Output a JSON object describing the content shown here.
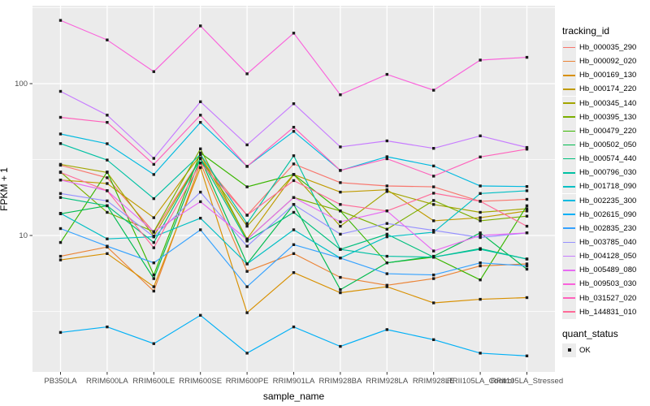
{
  "chart_data": {
    "type": "line",
    "title": "",
    "xlabel": "sample_name",
    "ylabel": "FPKM + 1",
    "y_scale": "log10",
    "y_major_ticks": [
      100,
      10
    ],
    "y_minor_gridlines": [
      316.23,
      31.62,
      3.1623
    ],
    "grid": "on",
    "legend_position": "right",
    "categories": [
      "PB350LA",
      "RRIM600LA",
      "RRIM600LE",
      "RRIM600SE",
      "RRIM600PE",
      "RRIM901LA",
      "RRIM928BA",
      "RRIM928LA",
      "RRIM928LE",
      "RRII105LA_Control",
      "RRII105LA_Stressed"
    ],
    "series": [
      {
        "name": "Hb_000035_290",
        "color": "#F8766D",
        "values": [
          29,
          24,
          10.5,
          32,
          13.6,
          29.6,
          22.3,
          21.2,
          20.9,
          16.8,
          17.3
        ]
      },
      {
        "name": "Hb_000092_020",
        "color": "#EB8335",
        "values": [
          7.3,
          8.4,
          4.3,
          30,
          5.8,
          7.6,
          5.3,
          4.7,
          5.2,
          6.3,
          6.5
        ]
      },
      {
        "name": "Hb_000169_130",
        "color": "#D89000",
        "values": [
          6.9,
          7.6,
          4.6,
          28,
          3.1,
          5.7,
          4.2,
          4.6,
          3.6,
          3.8,
          3.9
        ]
      },
      {
        "name": "Hb_000174_220",
        "color": "#C09B00",
        "values": [
          23.2,
          22,
          13.1,
          34,
          9.5,
          25.2,
          19.3,
          20,
          12.5,
          13.1,
          14.5
        ]
      },
      {
        "name": "Hb_000345_140",
        "color": "#A3A500",
        "values": [
          29.4,
          26,
          9.9,
          32,
          11.5,
          25.2,
          11.5,
          19.5,
          16,
          14.2,
          15
        ]
      },
      {
        "name": "Hb_000395_130",
        "color": "#7CAE00",
        "values": [
          26.2,
          14.2,
          10.6,
          37.2,
          9.4,
          17.8,
          14.5,
          11,
          17,
          12.5,
          13.4
        ]
      },
      {
        "name": "Hb_000479_220",
        "color": "#39B600",
        "values": [
          9.0,
          26.2,
          5.5,
          35,
          20.9,
          25.2,
          14.5,
          6.6,
          7.2,
          5.1,
          15.7
        ]
      },
      {
        "name": "Hb_000502_050",
        "color": "#00BB4E",
        "values": [
          13.9,
          15.7,
          5.2,
          32.2,
          6.5,
          16.0,
          4.4,
          6.6,
          7.3,
          10.4,
          6.0
        ]
      },
      {
        "name": "Hb_000574_440",
        "color": "#00BF7D",
        "values": [
          17.8,
          15.7,
          9.0,
          32.2,
          9.2,
          14.2,
          8.1,
          10.2,
          7.2,
          8.2,
          7.0
        ]
      },
      {
        "name": "Hb_000796_030",
        "color": "#00C1A3",
        "values": [
          40.3,
          31.4,
          17.5,
          34.2,
          12,
          33.5,
          8.1,
          7.3,
          7.2,
          8.1,
          7.0
        ]
      },
      {
        "name": "Hb_001718_090",
        "color": "#00BFC4",
        "values": [
          14,
          9.5,
          9.8,
          13,
          6.5,
          10.9,
          7.1,
          9.8,
          10.5,
          18.9,
          19.7
        ]
      },
      {
        "name": "Hb_002235_300",
        "color": "#00BAE0",
        "values": [
          46.6,
          40.2,
          25.2,
          55.6,
          28.5,
          48.5,
          26.8,
          33,
          28.7,
          21.2,
          21
        ]
      },
      {
        "name": "Hb_002615_090",
        "color": "#00B0F6",
        "values": [
          2.3,
          2.5,
          1.94,
          2.98,
          1.68,
          2.5,
          1.86,
          2.4,
          2.06,
          1.68,
          1.61
        ]
      },
      {
        "name": "Hb_002835_230",
        "color": "#35A2FF",
        "values": [
          11.1,
          8.5,
          6.6,
          10.9,
          4.6,
          8.7,
          7.1,
          5.6,
          5.5,
          6.6,
          6.3
        ]
      },
      {
        "name": "Hb_003785_040",
        "color": "#9590FF",
        "values": [
          18.9,
          16.9,
          9.8,
          19.3,
          8.5,
          16.0,
          10.2,
          12,
          10.8,
          9.7,
          10.4
        ]
      },
      {
        "name": "Hb_004128_050",
        "color": "#C77CFF",
        "values": [
          89,
          62,
          32.2,
          76,
          39.5,
          73.8,
          38.3,
          42,
          37.5,
          45.3,
          38
        ]
      },
      {
        "name": "Hb_005489_080",
        "color": "#E76BF3",
        "values": [
          23.2,
          19.7,
          10.6,
          16.7,
          9.4,
          17.8,
          12.3,
          14.5,
          7.9,
          10,
          10.4
        ]
      },
      {
        "name": "Hb_009503_030",
        "color": "#FA62DB",
        "values": [
          261,
          194,
          120,
          240,
          116,
          215,
          84.5,
          115,
          90.5,
          143,
          149
        ]
      },
      {
        "name": "Hb_031527_020",
        "color": "#FF62BC",
        "values": [
          60,
          55.6,
          29.4,
          62,
          28.5,
          51.6,
          26.8,
          32,
          24.6,
          32.9,
          37
        ]
      },
      {
        "name": "Hb_144831_010",
        "color": "#FF6A98",
        "values": [
          26,
          19.7,
          8.3,
          30,
          13.6,
          23,
          16,
          14.5,
          19,
          16.8,
          11.5
        ]
      }
    ],
    "marker": {
      "shape": "square",
      "color": "#1A1A1A",
      "size": 3.4
    }
  },
  "legend": {
    "tracking_title": "tracking_id",
    "quant_title": "quant_status",
    "quant_items": [
      {
        "label": "OK",
        "marker": "square",
        "color": "#1A1A1A"
      }
    ]
  },
  "style": {
    "panel_bg": "#EBEBEB",
    "grid_color": "#FFFFFF",
    "tick_label_color": "#4D4D4D",
    "axis_title_color": "#000000",
    "tick_color": "#333333",
    "legend_key_bg": "#ECECEC"
  }
}
